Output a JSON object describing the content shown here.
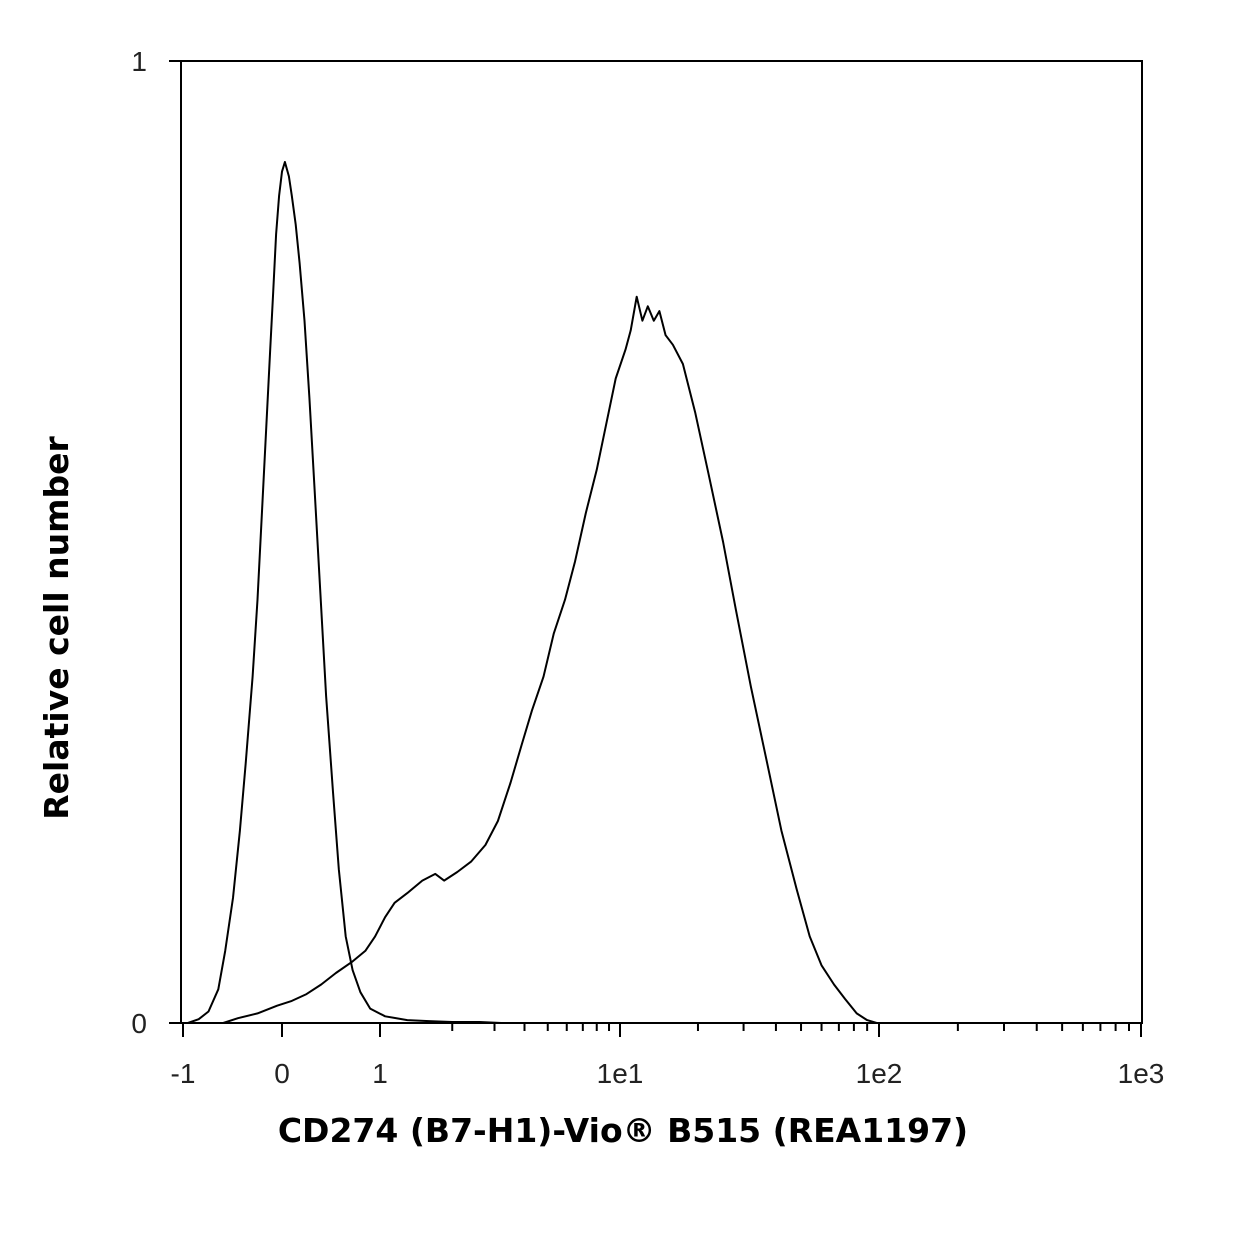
{
  "chart_data": {
    "type": "line",
    "title": "",
    "xlabel": "CD274 (B7-H1)-Vio® B515 (REA1197)",
    "ylabel": "Relative cell number",
    "x_scale": "biexponential",
    "xlim": [
      -1,
      1000
    ],
    "ylim": [
      0,
      1
    ],
    "x_ticks": [
      {
        "value": -1,
        "label": "-1"
      },
      {
        "value": 0,
        "label": "0"
      },
      {
        "value": 1,
        "label": "1"
      },
      {
        "value": 10,
        "label": "1e1"
      },
      {
        "value": 100,
        "label": "1e2"
      },
      {
        "value": 1000,
        "label": "1e3"
      }
    ],
    "y_ticks": [
      {
        "value": 0,
        "label": "0"
      },
      {
        "value": 1,
        "label": "1"
      }
    ],
    "grid": false,
    "legend": "none",
    "series": [
      {
        "points": [
          [
            -0.96,
            0.0
          ],
          [
            -0.85,
            0.004
          ],
          [
            -0.75,
            0.012
          ],
          [
            -0.65,
            0.035
          ],
          [
            -0.58,
            0.075
          ],
          [
            -0.5,
            0.13
          ],
          [
            -0.43,
            0.2
          ],
          [
            -0.37,
            0.27
          ],
          [
            -0.3,
            0.36
          ],
          [
            -0.25,
            0.44
          ],
          [
            -0.2,
            0.54
          ],
          [
            -0.16,
            0.62
          ],
          [
            -0.12,
            0.7
          ],
          [
            -0.09,
            0.76
          ],
          [
            -0.06,
            0.82
          ],
          [
            -0.03,
            0.86
          ],
          [
            0.0,
            0.885
          ],
          [
            0.03,
            0.895
          ],
          [
            0.07,
            0.88
          ],
          [
            0.1,
            0.86
          ],
          [
            0.14,
            0.83
          ],
          [
            0.18,
            0.79
          ],
          [
            0.23,
            0.73
          ],
          [
            0.28,
            0.65
          ],
          [
            0.33,
            0.56
          ],
          [
            0.39,
            0.45
          ],
          [
            0.45,
            0.34
          ],
          [
            0.52,
            0.24
          ],
          [
            0.58,
            0.16
          ],
          [
            0.65,
            0.09
          ],
          [
            0.72,
            0.055
          ],
          [
            0.8,
            0.032
          ],
          [
            0.9,
            0.015
          ],
          [
            1.05,
            0.007
          ],
          [
            1.3,
            0.003
          ],
          [
            1.6,
            0.002
          ],
          [
            2.0,
            0.001
          ],
          [
            2.6,
            0.001
          ],
          [
            3.2,
            0.0
          ]
        ]
      },
      {
        "points": [
          [
            -0.6,
            0.0
          ],
          [
            -0.45,
            0.005
          ],
          [
            -0.25,
            0.01
          ],
          [
            -0.05,
            0.018
          ],
          [
            0.1,
            0.023
          ],
          [
            0.25,
            0.03
          ],
          [
            0.4,
            0.04
          ],
          [
            0.55,
            0.052
          ],
          [
            0.72,
            0.064
          ],
          [
            0.85,
            0.075
          ],
          [
            0.95,
            0.09
          ],
          [
            1.05,
            0.11
          ],
          [
            1.15,
            0.125
          ],
          [
            1.3,
            0.135
          ],
          [
            1.5,
            0.148
          ],
          [
            1.7,
            0.155
          ],
          [
            1.85,
            0.148
          ],
          [
            2.1,
            0.157
          ],
          [
            2.4,
            0.168
          ],
          [
            2.75,
            0.185
          ],
          [
            3.1,
            0.21
          ],
          [
            3.5,
            0.25
          ],
          [
            3.9,
            0.29
          ],
          [
            4.3,
            0.325
          ],
          [
            4.8,
            0.36
          ],
          [
            5.3,
            0.405
          ],
          [
            5.9,
            0.44
          ],
          [
            6.5,
            0.48
          ],
          [
            7.2,
            0.53
          ],
          [
            8.0,
            0.575
          ],
          [
            8.8,
            0.625
          ],
          [
            9.6,
            0.67
          ],
          [
            10.5,
            0.7
          ],
          [
            11.0,
            0.72
          ],
          [
            11.6,
            0.755
          ],
          [
            12.2,
            0.73
          ],
          [
            12.8,
            0.745
          ],
          [
            13.5,
            0.73
          ],
          [
            14.2,
            0.74
          ],
          [
            15.0,
            0.715
          ],
          [
            16.0,
            0.705
          ],
          [
            17.5,
            0.685
          ],
          [
            19.5,
            0.635
          ],
          [
            22.0,
            0.57
          ],
          [
            25.0,
            0.5
          ],
          [
            28.0,
            0.43
          ],
          [
            32.0,
            0.35
          ],
          [
            37.0,
            0.27
          ],
          [
            42.0,
            0.2
          ],
          [
            48.0,
            0.14
          ],
          [
            54.0,
            0.09
          ],
          [
            60.0,
            0.06
          ],
          [
            67.0,
            0.04
          ],
          [
            74.0,
            0.025
          ],
          [
            82.0,
            0.01
          ],
          [
            90.0,
            0.003
          ],
          [
            98.0,
            0.0
          ]
        ]
      }
    ]
  }
}
